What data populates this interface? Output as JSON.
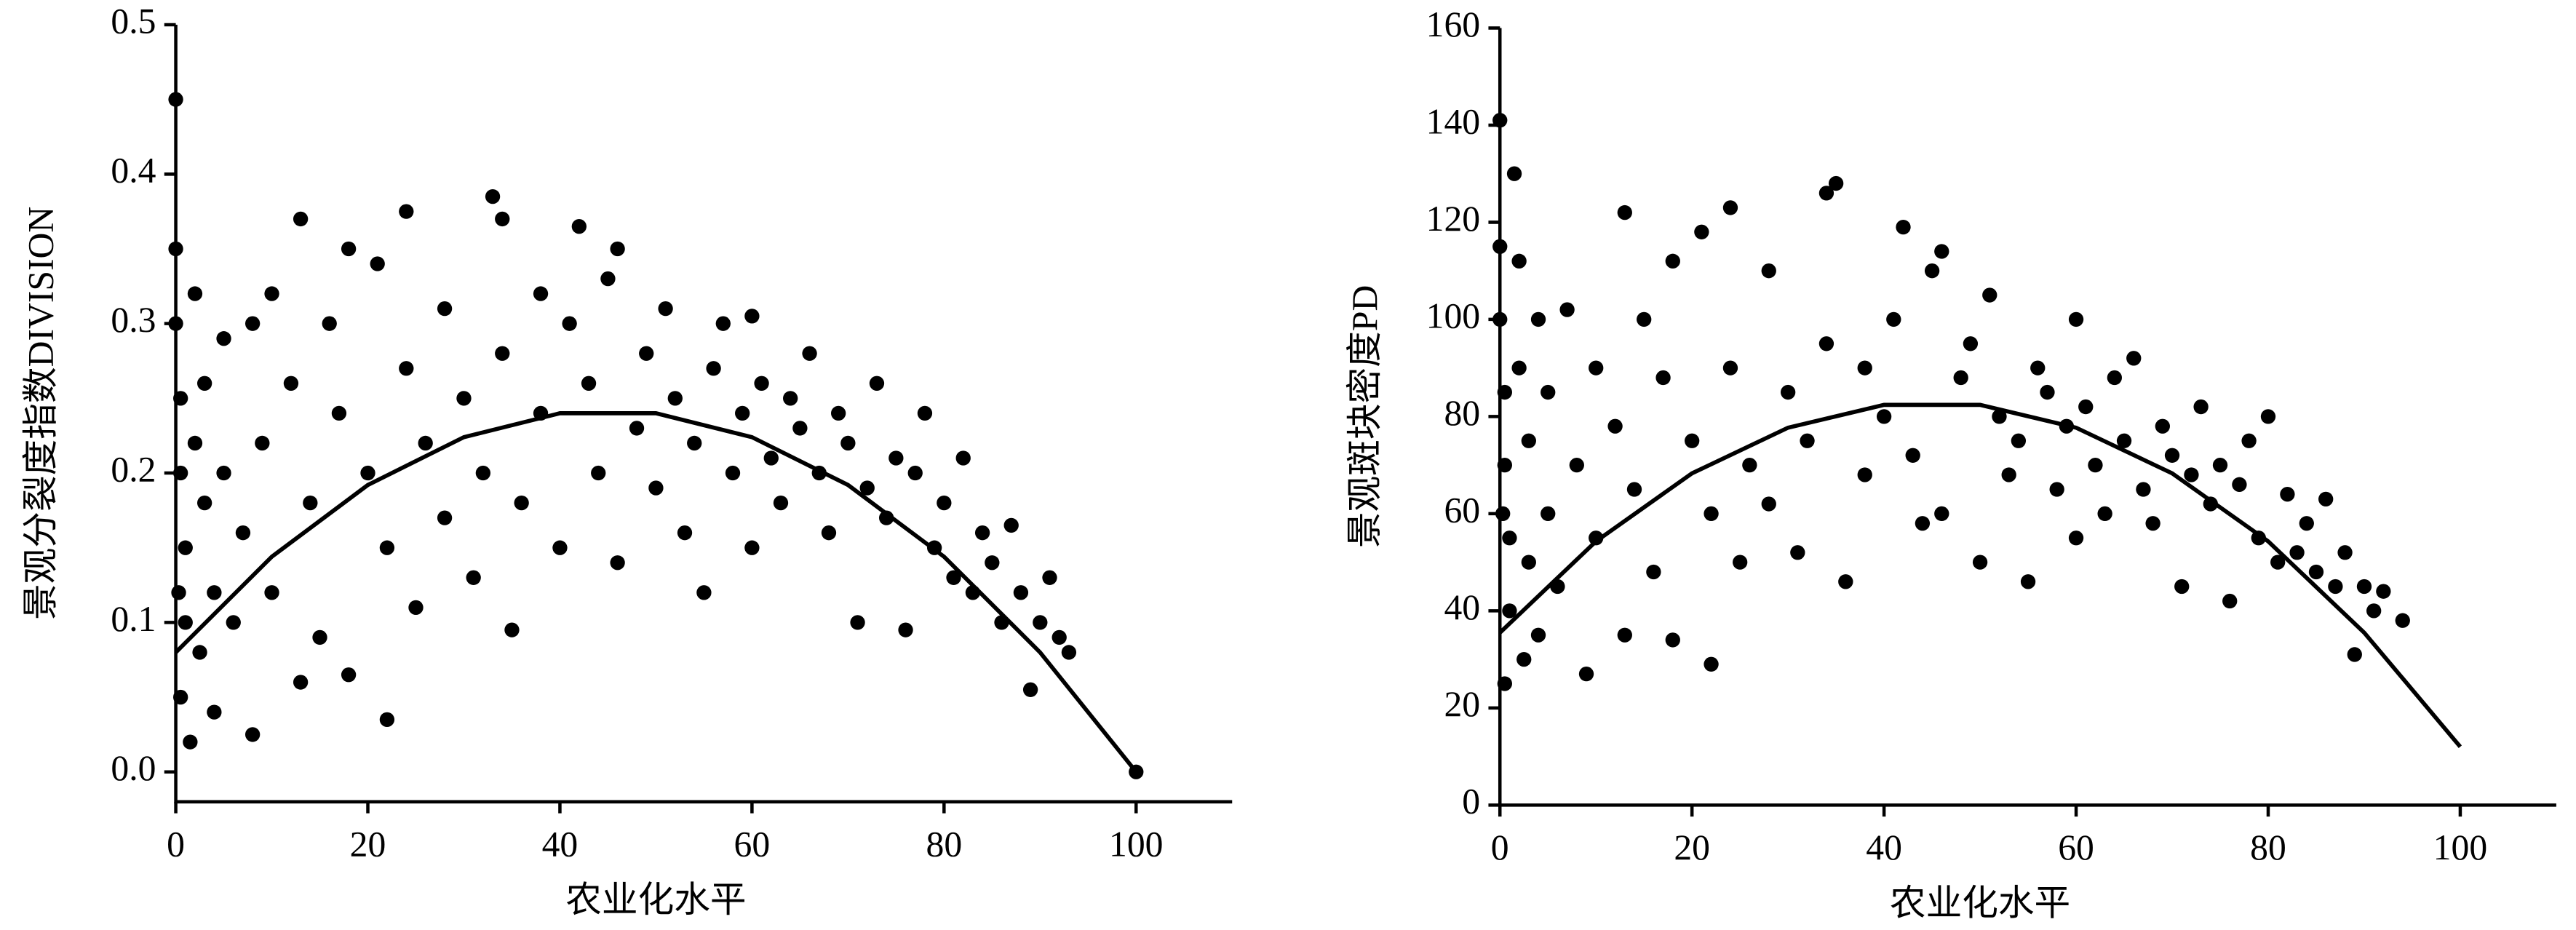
{
  "chart_data": [
    {
      "type": "scatter",
      "x_label": "农业化水平",
      "y_label": "景观分裂度指数DIVISION",
      "color": "#000000",
      "xlim": [
        0,
        110
      ],
      "xticks": [
        0,
        20,
        40,
        60,
        80,
        100
      ],
      "ylim": [
        -0.02,
        0.5
      ],
      "yticks": [
        {
          "value": 0,
          "label": "0.0"
        },
        0.1,
        0.2,
        0.3,
        0.4,
        0.5
      ],
      "x": [
        0,
        0,
        0,
        0.5,
        0.5,
        1,
        1,
        0.5,
        1.5,
        0.3,
        2,
        2,
        2.5,
        3,
        3,
        4,
        4,
        5,
        5,
        6,
        7,
        8,
        8,
        9,
        10,
        10,
        12,
        13,
        13,
        14,
        15,
        16,
        17,
        18,
        18,
        20,
        21,
        22,
        22,
        24,
        24,
        25,
        26,
        28,
        28,
        30,
        31,
        32,
        33,
        34,
        34,
        35,
        36,
        38,
        38,
        40,
        41,
        42,
        43,
        44,
        45,
        46,
        46,
        48,
        49,
        50,
        51,
        52,
        53,
        54,
        55,
        56,
        57,
        58,
        59,
        60,
        60,
        61,
        62,
        63,
        64,
        65,
        66,
        67,
        68,
        69,
        70,
        71,
        72,
        73,
        74,
        75,
        76,
        77,
        78,
        79,
        80,
        81,
        82,
        83,
        84,
        85,
        86,
        87,
        88,
        89,
        90,
        91,
        92,
        93,
        100
      ],
      "values": [
        0.45,
        0.35,
        0.3,
        0.25,
        0.2,
        0.15,
        0.1,
        0.05,
        0.02,
        0.12,
        0.32,
        0.22,
        0.08,
        0.18,
        0.26,
        0.12,
        0.04,
        0.29,
        0.2,
        0.1,
        0.16,
        0.025,
        0.3,
        0.22,
        0.32,
        0.12,
        0.26,
        0.37,
        0.06,
        0.18,
        0.09,
        0.3,
        0.24,
        0.35,
        0.065,
        0.2,
        0.34,
        0.035,
        0.15,
        0.375,
        0.27,
        0.11,
        0.22,
        0.31,
        0.17,
        0.25,
        0.13,
        0.2,
        0.385,
        0.37,
        0.28,
        0.095,
        0.18,
        0.32,
        0.24,
        0.15,
        0.3,
        0.365,
        0.26,
        0.2,
        0.33,
        0.35,
        0.14,
        0.23,
        0.28,
        0.19,
        0.31,
        0.25,
        0.16,
        0.22,
        0.12,
        0.27,
        0.3,
        0.2,
        0.24,
        0.305,
        0.15,
        0.26,
        0.21,
        0.18,
        0.25,
        0.23,
        0.28,
        0.2,
        0.16,
        0.24,
        0.22,
        0.1,
        0.19,
        0.26,
        0.17,
        0.21,
        0.095,
        0.2,
        0.24,
        0.15,
        0.18,
        0.13,
        0.21,
        0.12,
        0.16,
        0.14,
        0.1,
        0.165,
        0.12,
        0.055,
        0.1,
        0.13,
        0.09,
        0.08,
        0
      ],
      "fit": {
        "x": [
          0,
          10,
          20,
          30,
          40,
          50,
          60,
          70,
          80,
          90,
          100
        ],
        "values": [
          0.08,
          0.144,
          0.192,
          0.224,
          0.24,
          0.24,
          0.224,
          0.192,
          0.144,
          0.08,
          0
        ]
      }
    },
    {
      "type": "scatter",
      "x_label": "农业化水平",
      "y_label": "景观斑块密度PD",
      "color": "#000000",
      "xlim": [
        0,
        110
      ],
      "xticks": [
        0,
        20,
        40,
        60,
        80,
        100
      ],
      "ylim": [
        0,
        160
      ],
      "yticks": [
        0,
        20,
        40,
        60,
        80,
        100,
        120,
        140,
        160
      ],
      "x": [
        0,
        0,
        0,
        0.5,
        0.5,
        1,
        1,
        0.5,
        1.5,
        0.3,
        2,
        2,
        2.5,
        3,
        3,
        4,
        4,
        5,
        5,
        6,
        7,
        8,
        9,
        10,
        10,
        12,
        13,
        13,
        14,
        15,
        16,
        17,
        18,
        18,
        20,
        21,
        22,
        22,
        24,
        24,
        25,
        26,
        28,
        28,
        30,
        31,
        32,
        34,
        35,
        34,
        36,
        38,
        38,
        40,
        41,
        42,
        43,
        44,
        45,
        46,
        46,
        48,
        49,
        50,
        51,
        52,
        53,
        54,
        55,
        56,
        57,
        58,
        59,
        60,
        60,
        61,
        62,
        63,
        64,
        65,
        66,
        67,
        68,
        69,
        70,
        71,
        72,
        73,
        74,
        75,
        76,
        77,
        78,
        79,
        80,
        81,
        82,
        83,
        84,
        85,
        86,
        87,
        88,
        89,
        90,
        91,
        92,
        94
      ],
      "values": [
        141,
        115,
        100,
        85,
        70,
        55,
        40,
        25,
        130,
        60,
        112,
        90,
        30,
        75,
        50,
        100,
        35,
        85,
        60,
        45,
        102,
        70,
        27,
        90,
        55,
        78,
        122,
        35,
        65,
        100,
        48,
        88,
        112,
        34,
        75,
        118,
        29,
        60,
        123,
        90,
        50,
        70,
        110,
        62,
        85,
        52,
        75,
        126,
        128,
        95,
        46,
        90,
        68,
        80,
        100,
        119,
        72,
        58,
        110,
        114,
        60,
        88,
        95,
        50,
        105,
        80,
        68,
        75,
        46,
        90,
        85,
        65,
        78,
        100,
        55,
        82,
        70,
        60,
        88,
        75,
        92,
        65,
        58,
        78,
        72,
        45,
        68,
        82,
        62,
        70,
        42,
        66,
        75,
        55,
        80,
        50,
        64,
        52,
        58,
        48,
        63,
        45,
        52,
        31,
        45,
        40,
        44,
        38
      ],
      "fit": {
        "x": [
          0,
          10,
          20,
          30,
          40,
          50,
          60,
          70,
          80,
          90,
          100
        ],
        "values": [
          35.5,
          54.3,
          68.3,
          77.7,
          82.4,
          82.4,
          77.7,
          68.3,
          54.3,
          35.5,
          12
        ]
      }
    }
  ]
}
